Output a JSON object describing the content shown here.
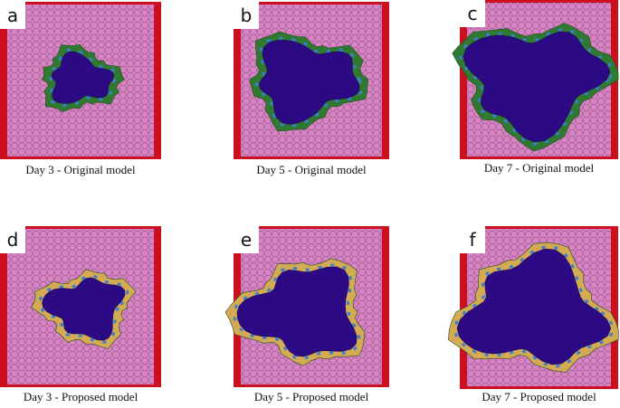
{
  "panels": [
    {
      "label": "a",
      "caption": "Day 3 - Original model"
    },
    {
      "label": "b",
      "caption": "Day 5 - Original model"
    },
    {
      "label": "c",
      "caption": "Day 7 - Original model"
    },
    {
      "label": "d",
      "caption": "Day 3 - Proposed model"
    },
    {
      "label": "e",
      "caption": "Day 5 - Proposed model"
    },
    {
      "label": "f",
      "caption": "Day 7 - Proposed model"
    }
  ]
}
